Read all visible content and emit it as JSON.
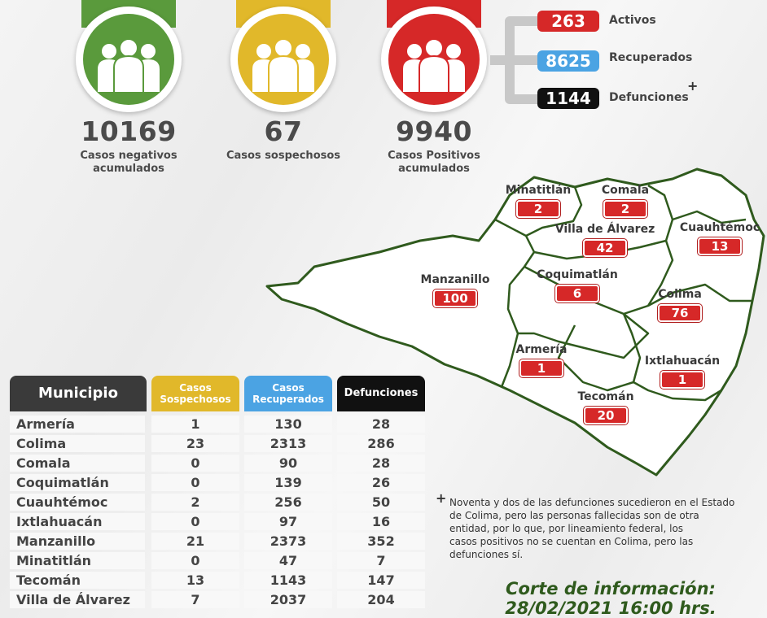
{
  "stats": [
    {
      "number": "10169",
      "label_line1": "Casos negativos",
      "label_line2": "acumulados",
      "color": "#5a9a3c"
    },
    {
      "number": "67",
      "label_line1": "Casos sospechosos",
      "label_line2": "",
      "color": "#e1b82a"
    },
    {
      "number": "9940",
      "label_line1": "Casos Positivos",
      "label_line2": "acumulados",
      "color": "#d62828"
    }
  ],
  "breakdown": [
    {
      "value": "263",
      "label": "Activos",
      "color": "#d62828"
    },
    {
      "value": "8625",
      "label": "Recuperados",
      "color": "#4ba3e3"
    },
    {
      "value": "1144",
      "label": "Defunciones",
      "color": "#111111"
    }
  ],
  "plus_sign": "+",
  "map": {
    "municipalities": [
      {
        "name": "Minatitlán",
        "count": "2"
      },
      {
        "name": "Comala",
        "count": "2"
      },
      {
        "name": "Villa de Álvarez",
        "count": "42"
      },
      {
        "name": "Cuauhtémoc",
        "count": "13"
      },
      {
        "name": "Manzanillo",
        "count": "100"
      },
      {
        "name": "Coquimatlán",
        "count": "6"
      },
      {
        "name": "Colima",
        "count": "76"
      },
      {
        "name": "Armería",
        "count": "1"
      },
      {
        "name": "Ixtlahuacán",
        "count": "1"
      },
      {
        "name": "Tecomán",
        "count": "20"
      }
    ]
  },
  "table": {
    "headers": {
      "municipio": "Municipio",
      "sospechosos_1": "Casos",
      "sospechosos_2": "Sospechosos",
      "recuperados_1": "Casos",
      "recuperados_2": "Recuperados",
      "defunciones": "Defunciones"
    },
    "header_colors": {
      "municipio": "#3a3a3a",
      "sospechosos": "#e1b82a",
      "recuperados": "#4ba3e3",
      "defunciones": "#111111"
    },
    "rows": [
      {
        "municipio": "Armería",
        "sospechosos": "1",
        "recuperados": "130",
        "defunciones": "28"
      },
      {
        "municipio": "Colima",
        "sospechosos": "23",
        "recuperados": "2313",
        "defunciones": "286"
      },
      {
        "municipio": "Comala",
        "sospechosos": "0",
        "recuperados": "90",
        "defunciones": "28"
      },
      {
        "municipio": "Coquimatlán",
        "sospechosos": "0",
        "recuperados": "139",
        "defunciones": "26"
      },
      {
        "municipio": "Cuauhtémoc",
        "sospechosos": "2",
        "recuperados": "256",
        "defunciones": "50"
      },
      {
        "municipio": "Ixtlahuacán",
        "sospechosos": "0",
        "recuperados": "97",
        "defunciones": "16"
      },
      {
        "municipio": "Manzanillo",
        "sospechosos": "21",
        "recuperados": "2373",
        "defunciones": "352"
      },
      {
        "municipio": "Minatitlán",
        "sospechosos": "0",
        "recuperados": "47",
        "defunciones": "7"
      },
      {
        "municipio": "Tecomán",
        "sospechosos": "13",
        "recuperados": "1143",
        "defunciones": "147"
      },
      {
        "municipio": "Villa de Álvarez",
        "sospechosos": "7",
        "recuperados": "2037",
        "defunciones": "204"
      }
    ]
  },
  "footnote": {
    "mark": "+",
    "line1": "Noventa y dos de las defunciones sucedieron en el Estado",
    "line2": "de Colima, pero las personas fallecidas son de otra",
    "line3": "entidad, por lo que, por lineamiento federal, los",
    "line4": "casos positivos no se cuentan en Colima, pero las",
    "line5": "defunciones sí."
  },
  "cutoff": {
    "line1": "Corte de información:",
    "line2": "28/02/2021 16:00 hrs."
  }
}
